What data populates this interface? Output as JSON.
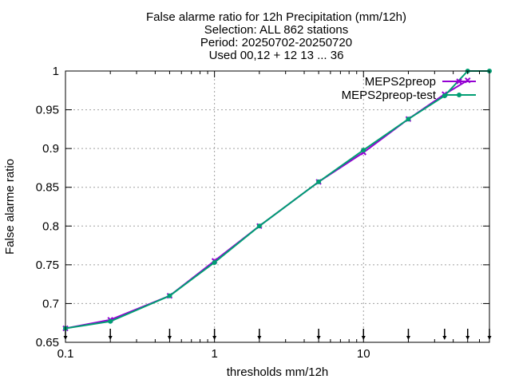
{
  "chart_data": {
    "type": "line",
    "title_lines": [
      "False alarme ratio  for 12h Precipitation (mm/12h)",
      "Selection: ALL    862 stations",
      "Period: 20250702-20250720",
      "Used 00,12 + 12 13 ... 36"
    ],
    "xlabel": "thresholds mm/12h",
    "ylabel": "False alarme ratio",
    "x_scale": "log",
    "xlim": [
      0.1,
      70
    ],
    "ylim": [
      0.65,
      1.0
    ],
    "x_ticks": [
      0.1,
      1,
      10
    ],
    "x_tick_labels": [
      "0.1",
      "1",
      "10"
    ],
    "y_ticks": [
      0.65,
      0.7,
      0.75,
      0.8,
      0.85,
      0.9,
      0.95,
      1.0
    ],
    "y_tick_labels": [
      "0.65",
      "0.7",
      "0.75",
      "0.8",
      "0.85",
      "0.9",
      "0.95",
      "1"
    ],
    "grid": true,
    "legend_position": "top-right",
    "threshold_markers": [
      0.1,
      0.2,
      0.5,
      1,
      2,
      5,
      10,
      20,
      35,
      50,
      70
    ],
    "series": [
      {
        "name": "MEPS2preop",
        "color": "#9400d3",
        "marker": "x",
        "x": [
          0.1,
          0.2,
          0.5,
          1,
          2,
          5,
          10,
          20,
          35,
          50
        ],
        "y": [
          0.668,
          0.679,
          0.71,
          0.755,
          0.8,
          0.857,
          0.895,
          0.938,
          0.97,
          0.988
        ]
      },
      {
        "name": "MEPS2preop-test",
        "color": "#009e73",
        "marker": "o",
        "x": [
          0.1,
          0.2,
          0.5,
          1,
          2,
          5,
          10,
          20,
          35,
          50,
          70
        ],
        "y": [
          0.668,
          0.677,
          0.71,
          0.753,
          0.8,
          0.857,
          0.898,
          0.938,
          0.968,
          1.0,
          1.0
        ]
      }
    ]
  }
}
